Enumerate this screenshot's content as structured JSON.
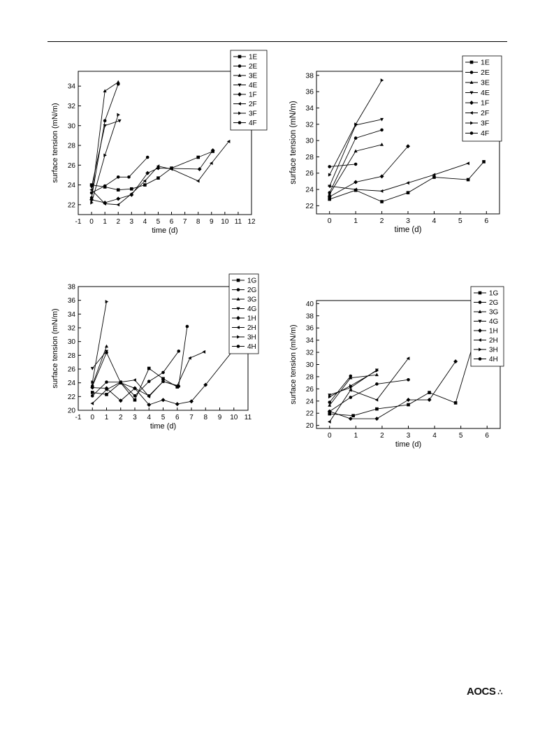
{
  "footer": {
    "logo_text": "AOCS",
    "logo_mark": "∴"
  },
  "chart_data": [
    {
      "type": "line",
      "xlabel": "time (d)",
      "ylabel": "surface tension (mN/m)",
      "xlim": [
        -1,
        12
      ],
      "ylim": [
        21,
        35.5
      ],
      "xticks": [
        -1,
        0,
        1,
        2,
        3,
        4,
        5,
        6,
        7,
        8,
        9,
        10,
        11,
        12
      ],
      "yticks": [
        22,
        24,
        26,
        28,
        30,
        32,
        34
      ],
      "legend_position": "top-right",
      "series": [
        {
          "name": "1E",
          "marker": "square",
          "x": [
            0,
            1,
            2,
            3,
            4,
            5,
            6,
            8,
            9.1
          ],
          "y": [
            24,
            23.8,
            23.5,
            23.6,
            24,
            24.7,
            25.7,
            26.8,
            27.4
          ]
        },
        {
          "name": "2E",
          "marker": "circle",
          "x": [
            0,
            1,
            2,
            2.8,
            4.2
          ],
          "y": [
            23.2,
            23.9,
            24.8,
            24.8,
            26.8
          ]
        },
        {
          "name": "3E",
          "marker": "triangle-up",
          "x": [
            0,
            1,
            2
          ],
          "y": [
            22.6,
            33.5,
            34.4
          ]
        },
        {
          "name": "4E",
          "marker": "triangle-down",
          "x": [
            0,
            1,
            2.1
          ],
          "y": [
            23.8,
            30,
            30.5
          ]
        },
        {
          "name": "1F",
          "marker": "diamond",
          "x": [
            0,
            1,
            2,
            3,
            4.2,
            5,
            8.1,
            9.1
          ],
          "y": [
            22.5,
            22.2,
            22.6,
            23,
            25.2,
            25.7,
            25.6,
            27.5
          ]
        },
        {
          "name": "2F",
          "marker": "triangle-left",
          "x": [
            0,
            1,
            2,
            3,
            4,
            5,
            6,
            8,
            9,
            10.3
          ],
          "y": [
            23.5,
            22.1,
            22,
            23.1,
            24.4,
            25.9,
            25.6,
            24.4,
            26.2,
            28.4
          ]
        },
        {
          "name": "3F",
          "marker": "triangle-right",
          "x": [
            0,
            1,
            2
          ],
          "y": [
            22.2,
            27,
            31.1
          ]
        },
        {
          "name": "4F",
          "marker": "circle",
          "x": [
            0,
            1,
            2
          ],
          "y": [
            22.7,
            30.5,
            34.2
          ]
        }
      ]
    },
    {
      "type": "line",
      "xlabel": "time (d)",
      "ylabel": "surface tension (mN/m)",
      "xlim": [
        -0.5,
        6.5
      ],
      "ylim": [
        21,
        38.5
      ],
      "xticks": [
        0,
        1,
        2,
        3,
        4,
        5,
        6
      ],
      "yticks": [
        22,
        24,
        26,
        28,
        30,
        32,
        34,
        36,
        38
      ],
      "legend_position": "top-right",
      "series": [
        {
          "name": "1E",
          "marker": "square",
          "x": [
            0,
            1,
            2,
            3,
            4,
            5.3,
            5.9
          ],
          "y": [
            22.8,
            23.9,
            22.5,
            23.6,
            25.5,
            25.2,
            27.4
          ]
        },
        {
          "name": "2E",
          "marker": "circle",
          "x": [
            0,
            1,
            2
          ],
          "y": [
            23.6,
            30.3,
            31.3
          ]
        },
        {
          "name": "3E",
          "marker": "triangle-up",
          "x": [
            0,
            1,
            2
          ],
          "y": [
            23.4,
            28.7,
            29.5
          ]
        },
        {
          "name": "4E",
          "marker": "triangle-down",
          "x": [
            0,
            1,
            2
          ],
          "y": [
            24.4,
            31.9,
            32.6
          ]
        },
        {
          "name": "1F",
          "marker": "diamond",
          "x": [
            0,
            1,
            2,
            3
          ],
          "y": [
            23.1,
            24.9,
            25.6,
            29.3
          ]
        },
        {
          "name": "2F",
          "marker": "triangle-left",
          "x": [
            0,
            1,
            2,
            3,
            4,
            5.3
          ],
          "y": [
            24.4,
            24,
            23.8,
            24.8,
            25.8,
            27.2
          ]
        },
        {
          "name": "3F",
          "marker": "triangle-right",
          "x": [
            0,
            1,
            2
          ],
          "y": [
            25.8,
            32,
            37.4
          ]
        },
        {
          "name": "4F",
          "marker": "circle",
          "x": [
            0,
            1
          ],
          "y": [
            26.8,
            27.1
          ]
        }
      ]
    },
    {
      "type": "line",
      "xlabel": "time (d)",
      "ylabel": "surface tension (mN/m)",
      "xlim": [
        -1,
        11
      ],
      "ylim": [
        20,
        38
      ],
      "xticks": [
        -1,
        0,
        1,
        2,
        3,
        4,
        5,
        6,
        7,
        8,
        9,
        10,
        11
      ],
      "yticks": [
        20,
        22,
        24,
        26,
        28,
        30,
        32,
        34,
        36,
        38
      ],
      "legend_position": "top-right",
      "series": [
        {
          "name": "1G",
          "marker": "square",
          "x": [
            0,
            1,
            2,
            3,
            4,
            5,
            6
          ],
          "y": [
            22.6,
            22.3,
            24,
            21.5,
            26.1,
            24.6,
            23.4
          ]
        },
        {
          "name": "2G",
          "marker": "circle",
          "x": [
            0,
            1,
            2,
            3,
            4,
            5,
            6.1
          ],
          "y": [
            22.1,
            24.1,
            24.1,
            22.1,
            24.2,
            25.5,
            28.6
          ]
        },
        {
          "name": "3G",
          "marker": "triangle-up",
          "x": [
            0,
            1
          ],
          "y": [
            23.7,
            29.3
          ]
        },
        {
          "name": "4G",
          "marker": "triangle-down",
          "x": [
            0,
            1
          ],
          "y": [
            26.1,
            28.6
          ]
        },
        {
          "name": "1H",
          "marker": "diamond",
          "x": [
            0,
            1,
            2,
            3,
            4,
            5,
            6,
            7,
            8,
            9.9
          ],
          "y": [
            23.3,
            23.2,
            21.4,
            23.2,
            20.8,
            21.5,
            20.9,
            21.3,
            23.7,
            28.6
          ]
        },
        {
          "name": "2H",
          "marker": "triangle-left",
          "x": [
            0,
            1,
            2,
            3,
            4,
            5,
            6,
            6.9,
            7.9
          ],
          "y": [
            21,
            23,
            24.1,
            24.4,
            22,
            24.2,
            23.6,
            27.6,
            28.5
          ]
        },
        {
          "name": "3H",
          "marker": "triangle-right",
          "x": [
            0,
            1
          ],
          "y": [
            24.1,
            35.8
          ]
        },
        {
          "name": "4H",
          "marker": "circle",
          "x": [
            0,
            1,
            2,
            3,
            4,
            5,
            6.1,
            6.7
          ],
          "y": [
            23.5,
            28.4,
            24,
            23.2,
            22.1,
            24.2,
            23.5,
            32.2
          ]
        }
      ]
    },
    {
      "type": "line",
      "xlabel": "time (d)",
      "ylabel": "surface tension (mN/m)",
      "xlim": [
        -0.5,
        6.5
      ],
      "ylim": [
        19.5,
        40.5
      ],
      "xticks": [
        0,
        1,
        2,
        3,
        4,
        5,
        6
      ],
      "yticks": [
        20,
        22,
        24,
        26,
        28,
        30,
        32,
        34,
        36,
        38,
        40
      ],
      "legend_position": "top-right",
      "series": [
        {
          "name": "1G",
          "marker": "square",
          "x": [
            0,
            0.9,
            1.8,
            3,
            3.8,
            4.8,
            5.8
          ],
          "y": [
            21.9,
            21.6,
            22.7,
            23.4,
            25.4,
            23.7,
            38.1
          ]
        },
        {
          "name": "2G",
          "marker": "circle",
          "x": [
            0,
            0.8,
            1.8,
            3
          ],
          "y": [
            22.3,
            24.6,
            26.8,
            27.5
          ]
        },
        {
          "name": "3G",
          "marker": "triangle-up",
          "x": [
            0,
            0.8,
            1.8
          ],
          "y": [
            23.3,
            27.8,
            28.3
          ]
        },
        {
          "name": "4G",
          "marker": "triangle-down",
          "x": [
            0,
            0.8,
            1.8
          ],
          "y": [
            25,
            26.2,
            29.1
          ]
        },
        {
          "name": "1H",
          "marker": "diamond",
          "x": [
            0,
            0.8,
            1.8,
            3,
            3.8,
            4.8
          ],
          "y": [
            22.3,
            21.1,
            21.1,
            24.2,
            24.2,
            30.5
          ]
        },
        {
          "name": "2H",
          "marker": "triangle-left",
          "x": [
            0,
            0.8,
            1.8,
            3
          ],
          "y": [
            20.6,
            25.8,
            24.2,
            31
          ]
        },
        {
          "name": "3H",
          "marker": "triangle-right",
          "x": [
            0,
            0.8,
            1.8
          ],
          "y": [
            24.7,
            26.5,
            29
          ]
        },
        {
          "name": "4H",
          "marker": "circle",
          "x": [
            0,
            0.8
          ],
          "y": [
            23.8,
            28.1
          ]
        }
      ]
    }
  ]
}
